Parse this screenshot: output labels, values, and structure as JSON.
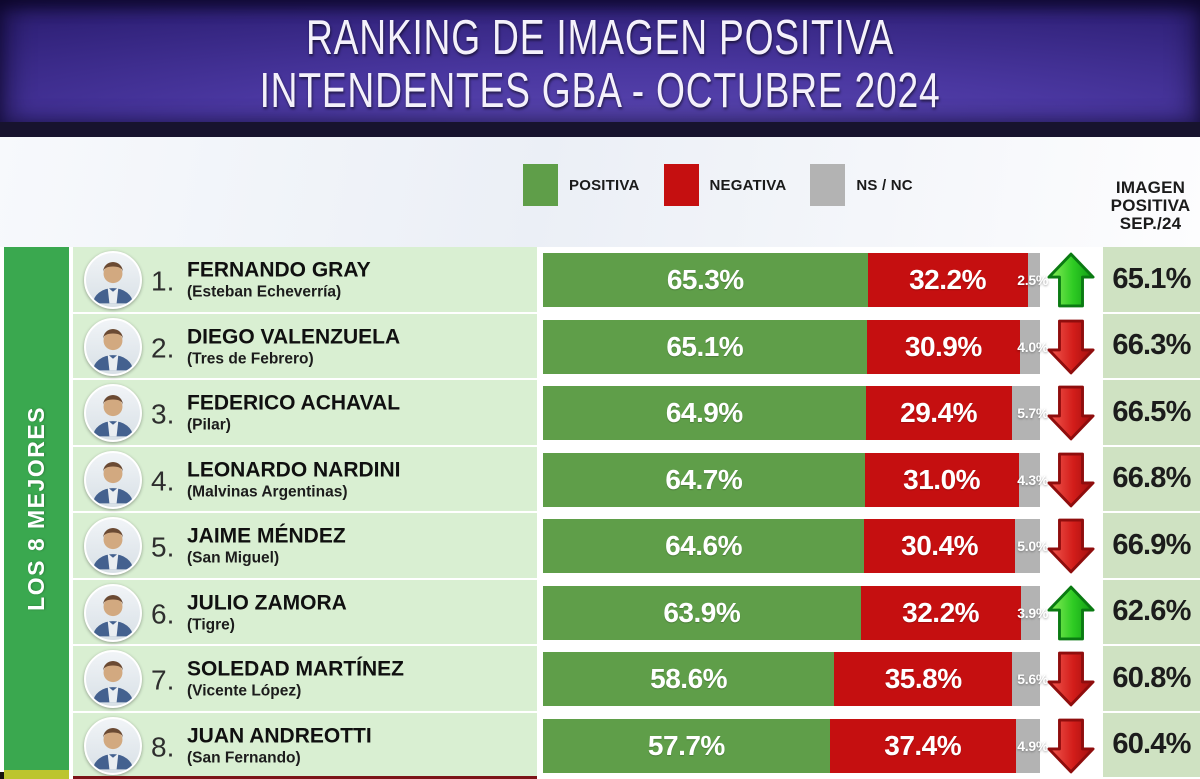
{
  "header": {
    "line1": "RANKING DE IMAGEN POSITIVA",
    "line2": "INTENDENTES GBA - OCTUBRE 2024"
  },
  "legend": {
    "items": [
      {
        "label": "POSITIVA",
        "color": "#5f9e49"
      },
      {
        "label": "NEGATIVA",
        "color": "#c50f10"
      },
      {
        "label": "NS / NC",
        "color": "#b3b3b3"
      }
    ]
  },
  "prev_header": {
    "line1": "IMAGEN",
    "line2": "POSITIVA",
    "line3": "SEP./24"
  },
  "side_label": "LOS 8 MEJORES",
  "colors": {
    "positiva": "#5f9e49",
    "negativa": "#c50f10",
    "ns_nc": "#b3b3b3",
    "row_bg": "#d9efd2",
    "prev_bg": "#cfe2c2",
    "side_band": "#3aa84f",
    "arrow_up": "#1fbf1f",
    "arrow_down": "#cd1a1a",
    "header_purple": "#4a37a0"
  },
  "chart_data": {
    "type": "bar",
    "orientation": "horizontal",
    "stacked": true,
    "xlim": [
      0,
      100
    ],
    "title": "RANKING DE IMAGEN POSITIVA INTENDENTES GBA - OCTUBRE 2024",
    "series_names": [
      "POSITIVA",
      "NEGATIVA",
      "NS / NC"
    ],
    "prev_column_label": "IMAGEN POSITIVA SEP./24",
    "rows": [
      {
        "rank": "1.",
        "name": "FERNANDO GRAY",
        "municipality": "(Esteban Echeverría)",
        "positiva": 65.3,
        "negativa": 32.2,
        "ns_nc": 2.5,
        "trend": "up",
        "prev_sep24": 65.1
      },
      {
        "rank": "2.",
        "name": "DIEGO VALENZUELA",
        "municipality": "(Tres de Febrero)",
        "positiva": 65.1,
        "negativa": 30.9,
        "ns_nc": 4.0,
        "trend": "down",
        "prev_sep24": 66.3
      },
      {
        "rank": "3.",
        "name": "FEDERICO ACHAVAL",
        "municipality": "(Pilar)",
        "positiva": 64.9,
        "negativa": 29.4,
        "ns_nc": 5.7,
        "trend": "down",
        "prev_sep24": 66.5
      },
      {
        "rank": "4.",
        "name": "LEONARDO NARDINI",
        "municipality": "(Malvinas Argentinas)",
        "positiva": 64.7,
        "negativa": 31.0,
        "ns_nc": 4.3,
        "trend": "down",
        "prev_sep24": 66.8
      },
      {
        "rank": "5.",
        "name": "JAIME MÉNDEZ",
        "municipality": "(San Miguel)",
        "positiva": 64.6,
        "negativa": 30.4,
        "ns_nc": 5.0,
        "trend": "down",
        "prev_sep24": 66.9
      },
      {
        "rank": "6.",
        "name": "JULIO ZAMORA",
        "municipality": "(Tigre)",
        "positiva": 63.9,
        "negativa": 32.2,
        "ns_nc": 3.9,
        "trend": "up",
        "prev_sep24": 62.6
      },
      {
        "rank": "7.",
        "name": "SOLEDAD MARTÍNEZ",
        "municipality": "(Vicente López)",
        "positiva": 58.6,
        "negativa": 35.8,
        "ns_nc": 5.6,
        "trend": "down",
        "prev_sep24": 60.8
      },
      {
        "rank": "8.",
        "name": "JUAN ANDREOTTI",
        "municipality": "(San Fernando)",
        "positiva": 57.7,
        "negativa": 37.4,
        "ns_nc": 4.9,
        "trend": "down",
        "prev_sep24": 60.4
      }
    ]
  }
}
